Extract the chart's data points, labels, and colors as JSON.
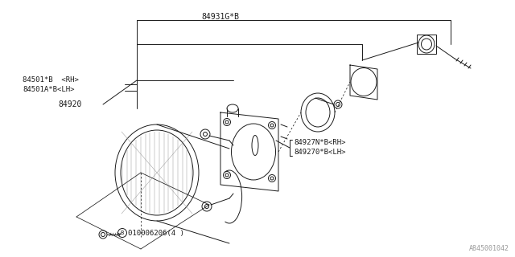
{
  "bg_color": "#ffffff",
  "line_color": "#1a1a1a",
  "gray_color": "#999999",
  "fig_width": 6.4,
  "fig_height": 3.2,
  "dpi": 100,
  "diagram_id": "A845001042",
  "labels": {
    "part1": "84931G*B",
    "part2": "84501*B  <RH>",
    "part3": "84501A*B<LH>",
    "part4": "84920",
    "part5": "84927N*B<RH>",
    "part6": "849270*B<LH>",
    "part7": "010006206(4 )"
  }
}
